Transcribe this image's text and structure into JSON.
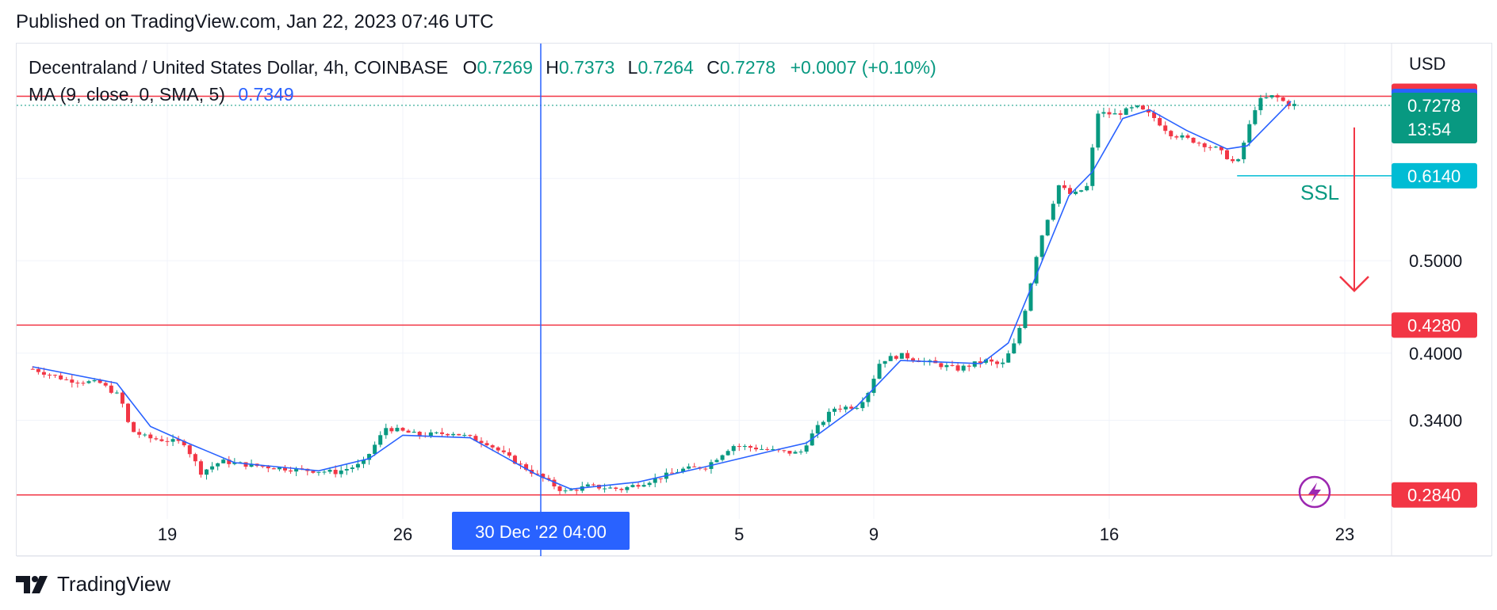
{
  "header": {
    "published": "Published on TradingView.com, Jan 22, 2023 07:46 UTC"
  },
  "legend": {
    "symbol": "Decentraland / United States Dollar, 4h, COINBASE",
    "o_label": "O",
    "o_value": "0.7269",
    "h_label": "H",
    "h_value": "0.7373",
    "l_label": "L",
    "l_value": "0.7264",
    "c_label": "C",
    "c_value": "0.7278",
    "change": "+0.0007 (+0.10%)",
    "ma_label": "MA (9, close, 0, SMA, 5)",
    "ma_value": "0.7349"
  },
  "footer": {
    "brand": "TradingView"
  },
  "colors": {
    "up": "#089981",
    "down": "#f23645",
    "ma": "#2962ff",
    "level_line": "#f23645",
    "ssl_line": "#00bcd4",
    "ssl_text": "#089981",
    "crosshair": "#2962ff",
    "lightning": "#9c27b0"
  },
  "chart_data": {
    "type": "candlestick",
    "currency_label": "USD",
    "y_axis": {
      "scale": "log",
      "range": [
        0.268,
        0.845
      ],
      "ticks": [
        "0.3400",
        "0.4000",
        "0.5000"
      ]
    },
    "x_axis": {
      "ticks": [
        "19",
        "26",
        "5",
        "9",
        "16",
        "23"
      ],
      "crosshair_label": "30 Dec '22   04:00"
    },
    "price_labels": [
      {
        "name": "resistance-top",
        "value": 0.744,
        "text": "0.7440",
        "color": "#f23645",
        "line": true
      },
      {
        "name": "ma-current",
        "value": 0.7349,
        "text": "0.7349",
        "color": "#2962ff",
        "line": false
      },
      {
        "name": "last-price",
        "value": 0.7278,
        "text": "0.7278",
        "countdown": "13:54",
        "color": "#089981",
        "line": "dotted"
      },
      {
        "name": "ssl",
        "value": 0.614,
        "text": "0.6140",
        "color": "#00bcd4",
        "line": false
      },
      {
        "name": "support-mid",
        "value": 0.428,
        "text": "0.4280",
        "color": "#f23645",
        "line": true
      },
      {
        "name": "support-low",
        "value": 0.284,
        "text": "0.2840",
        "color": "#f23645",
        "line": true
      }
    ],
    "annotations": {
      "ssl_text": "SSL",
      "ssl_value": 0.614,
      "arrow_from": 0.69,
      "arrow_to": 0.465
    },
    "price_path": [
      {
        "day": 15.0,
        "price": 0.385
      },
      {
        "day": 16.0,
        "price": 0.375
      },
      {
        "day": 17.0,
        "price": 0.372
      },
      {
        "day": 17.6,
        "price": 0.36
      },
      {
        "day": 17.9,
        "price": 0.332
      },
      {
        "day": 18.4,
        "price": 0.326
      },
      {
        "day": 19.5,
        "price": 0.322
      },
      {
        "day": 20.0,
        "price": 0.3
      },
      {
        "day": 20.6,
        "price": 0.308
      },
      {
        "day": 21.5,
        "price": 0.305
      },
      {
        "day": 22.8,
        "price": 0.302
      },
      {
        "day": 24.0,
        "price": 0.3
      },
      {
        "day": 24.8,
        "price": 0.306
      },
      {
        "day": 25.5,
        "price": 0.334
      },
      {
        "day": 26.5,
        "price": 0.328
      },
      {
        "day": 27.5,
        "price": 0.33
      },
      {
        "day": 28.5,
        "price": 0.322
      },
      {
        "day": 29.5,
        "price": 0.305
      },
      {
        "day": 30.2,
        "price": 0.295
      },
      {
        "day": 30.8,
        "price": 0.286
      },
      {
        "day": 31.5,
        "price": 0.29
      },
      {
        "day": 32.5,
        "price": 0.288
      },
      {
        "day": 33.5,
        "price": 0.295
      },
      {
        "day": 34.3,
        "price": 0.302
      },
      {
        "day": 35.0,
        "price": 0.304
      },
      {
        "day": 35.8,
        "price": 0.32
      },
      {
        "day": 36.5,
        "price": 0.318
      },
      {
        "day": 37.3,
        "price": 0.315
      },
      {
        "day": 37.8,
        "price": 0.314
      },
      {
        "day": 38.2,
        "price": 0.33
      },
      {
        "day": 38.8,
        "price": 0.35
      },
      {
        "day": 39.5,
        "price": 0.352
      },
      {
        "day": 39.8,
        "price": 0.362
      },
      {
        "day": 40.2,
        "price": 0.393
      },
      {
        "day": 40.8,
        "price": 0.398
      },
      {
        "day": 41.5,
        "price": 0.392
      },
      {
        "day": 42.5,
        "price": 0.385
      },
      {
        "day": 43.3,
        "price": 0.393
      },
      {
        "day": 43.8,
        "price": 0.388
      },
      {
        "day": 44.2,
        "price": 0.41
      },
      {
        "day": 44.5,
        "price": 0.445
      },
      {
        "day": 44.9,
        "price": 0.52
      },
      {
        "day": 45.5,
        "price": 0.6
      },
      {
        "day": 45.9,
        "price": 0.585
      },
      {
        "day": 46.4,
        "price": 0.6
      },
      {
        "day": 46.6,
        "price": 0.715
      },
      {
        "day": 47.2,
        "price": 0.712
      },
      {
        "day": 47.8,
        "price": 0.725
      },
      {
        "day": 48.3,
        "price": 0.708
      },
      {
        "day": 48.8,
        "price": 0.68
      },
      {
        "day": 49.5,
        "price": 0.668
      },
      {
        "day": 50.2,
        "price": 0.655
      },
      {
        "day": 50.8,
        "price": 0.63
      },
      {
        "day": 51.0,
        "price": 0.665
      },
      {
        "day": 51.4,
        "price": 0.735
      },
      {
        "day": 51.9,
        "price": 0.745
      },
      {
        "day": 52.3,
        "price": 0.73
      },
      {
        "day": 52.6,
        "price": 0.7278
      }
    ],
    "ma_path": [
      {
        "day": 15.0,
        "price": 0.387
      },
      {
        "day": 17.5,
        "price": 0.372
      },
      {
        "day": 18.5,
        "price": 0.335
      },
      {
        "day": 19.6,
        "price": 0.322
      },
      {
        "day": 21.0,
        "price": 0.307
      },
      {
        "day": 23.5,
        "price": 0.301
      },
      {
        "day": 25.0,
        "price": 0.31
      },
      {
        "day": 26.0,
        "price": 0.328
      },
      {
        "day": 28.0,
        "price": 0.326
      },
      {
        "day": 30.0,
        "price": 0.298
      },
      {
        "day": 31.0,
        "price": 0.288
      },
      {
        "day": 33.0,
        "price": 0.293
      },
      {
        "day": 35.0,
        "price": 0.304
      },
      {
        "day": 37.0,
        "price": 0.316
      },
      {
        "day": 38.0,
        "price": 0.322
      },
      {
        "day": 39.5,
        "price": 0.352
      },
      {
        "day": 40.8,
        "price": 0.393
      },
      {
        "day": 43.2,
        "price": 0.39
      },
      {
        "day": 44.0,
        "price": 0.41
      },
      {
        "day": 44.8,
        "price": 0.48
      },
      {
        "day": 45.8,
        "price": 0.585
      },
      {
        "day": 46.5,
        "price": 0.62
      },
      {
        "day": 47.4,
        "price": 0.705
      },
      {
        "day": 48.2,
        "price": 0.72
      },
      {
        "day": 49.3,
        "price": 0.685
      },
      {
        "day": 50.5,
        "price": 0.655
      },
      {
        "day": 51.1,
        "price": 0.66
      },
      {
        "day": 52.4,
        "price": 0.7349
      }
    ]
  }
}
